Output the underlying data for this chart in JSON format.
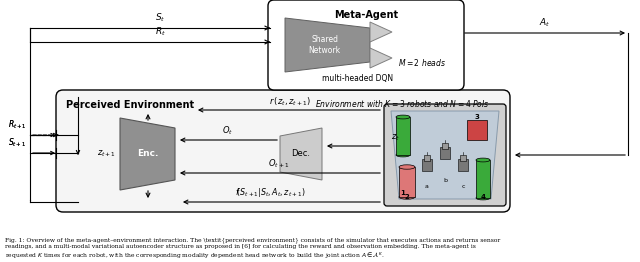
{
  "bg_color": "#ffffff",
  "meta_title": "Meta-Agent",
  "perceived_env_label": "Perceived Environment",
  "env_label": "Environment with $K=3$ robots and $N=4$ PoIs",
  "shared_network_label": "Shared\nNetwork",
  "multi_headed_label": "multi-headed DQN",
  "m_heads_label": "$M = 2$ heads",
  "enc_label": "Enc.",
  "dec_label": "Dec.",
  "gray_main": "#909090",
  "gray_light": "#b8b8b8",
  "gray_lighter": "#cccccc",
  "green_color": "#3aaa3a",
  "red_color": "#cc3333",
  "salmon_color": "#dd7777",
  "scene_bg": "#c0ccd8",
  "scene_floor": "#8899aa"
}
